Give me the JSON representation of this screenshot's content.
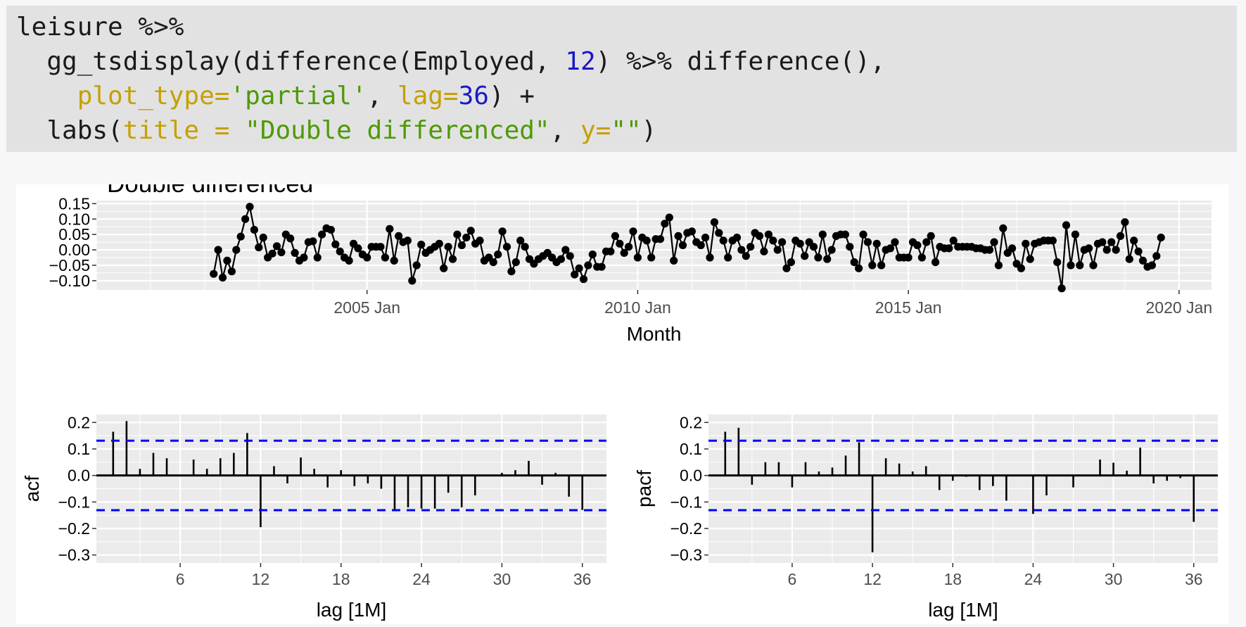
{
  "code": {
    "lines": [
      [
        {
          "t": "leisure %>%",
          "c": "plain"
        }
      ],
      [
        {
          "t": "  gg_tsdisplay(difference(Employed, ",
          "c": "plain"
        },
        {
          "t": "12",
          "c": "num"
        },
        {
          "t": ") %>% difference(),",
          "c": "plain"
        }
      ],
      [
        {
          "t": "    ",
          "c": "plain"
        },
        {
          "t": "plot_type=",
          "c": "arg"
        },
        {
          "t": "'partial'",
          "c": "str"
        },
        {
          "t": ", ",
          "c": "plain"
        },
        {
          "t": "lag=",
          "c": "arg"
        },
        {
          "t": "36",
          "c": "num"
        },
        {
          "t": ") +",
          "c": "plain"
        }
      ],
      [
        {
          "t": "  labs(",
          "c": "plain"
        },
        {
          "t": "title = ",
          "c": "arg"
        },
        {
          "t": "\"Double differenced\"",
          "c": "str"
        },
        {
          "t": ", ",
          "c": "plain"
        },
        {
          "t": "y=",
          "c": "arg"
        },
        {
          "t": "\"\"",
          "c": "str"
        },
        {
          "t": ")",
          "c": "plain"
        }
      ]
    ]
  },
  "colors": {
    "panel_bg": "#ebebeb",
    "grid": "#ffffff",
    "series": "#000000",
    "ci": "#0000ff",
    "code_bg": "#e2e2e2"
  },
  "chart_data": [
    {
      "type": "line",
      "title": "Double differenced",
      "xlabel": "Month",
      "ylabel": "",
      "x_start": "2002 Mar",
      "x_end": "2019 Sep",
      "x_ticks": [
        "2005 Jan",
        "2010 Jan",
        "2015 Jan",
        "2020 Jan"
      ],
      "x_tick_years": [
        2005,
        2010,
        2015,
        2020
      ],
      "xlim_years": [
        2000,
        2020.6
      ],
      "y_ticks": [
        -0.1,
        -0.05,
        0.0,
        0.05,
        0.1,
        0.15
      ],
      "ylim": [
        -0.13,
        0.16
      ],
      "markers": true,
      "values": [
        -0.078,
        0.0,
        -0.09,
        -0.035,
        -0.07,
        0.0,
        0.043,
        0.1,
        0.14,
        0.065,
        0.008,
        0.04,
        -0.025,
        -0.012,
        0.012,
        -0.008,
        0.05,
        0.037,
        -0.01,
        -0.035,
        -0.025,
        0.025,
        0.028,
        -0.025,
        0.05,
        0.07,
        0.065,
        0.018,
        -0.005,
        -0.025,
        -0.035,
        0.02,
        0.005,
        -0.015,
        -0.025,
        0.01,
        0.01,
        0.01,
        -0.025,
        0.068,
        -0.035,
        0.045,
        0.025,
        0.03,
        -0.1,
        -0.05,
        0.017,
        -0.01,
        0.0,
        0.01,
        0.02,
        -0.06,
        0.01,
        -0.03,
        0.05,
        0.015,
        0.04,
        0.062,
        0.02,
        0.03,
        -0.035,
        -0.025,
        -0.04,
        -0.015,
        0.06,
        0.01,
        -0.07,
        -0.04,
        0.03,
        0.01,
        -0.03,
        -0.045,
        -0.03,
        -0.02,
        -0.01,
        -0.025,
        -0.04,
        -0.03,
        0.0,
        -0.02,
        -0.08,
        -0.06,
        -0.095,
        -0.05,
        -0.015,
        -0.055,
        -0.055,
        -0.005,
        -0.005,
        0.045,
        0.02,
        -0.01,
        0.01,
        0.06,
        -0.025,
        0.04,
        0.03,
        -0.025,
        0.035,
        0.035,
        0.085,
        0.105,
        -0.035,
        0.045,
        0.015,
        0.055,
        0.06,
        0.025,
        0.015,
        0.04,
        -0.025,
        0.09,
        0.055,
        0.03,
        -0.025,
        0.03,
        0.04,
        0.0,
        -0.02,
        0.01,
        0.055,
        0.045,
        -0.005,
        0.05,
        0.03,
        0.0,
        0.025,
        -0.06,
        -0.04,
        0.03,
        0.02,
        -0.02,
        0.025,
        0.01,
        -0.025,
        0.05,
        -0.03,
        0.0,
        0.045,
        0.05,
        0.05,
        0.01,
        -0.04,
        -0.06,
        0.05,
        0.025,
        -0.05,
        0.02,
        -0.05,
        0.0,
        0.005,
        0.025,
        -0.025,
        -0.025,
        -0.025,
        0.025,
        0.015,
        -0.025,
        0.025,
        0.045,
        -0.04,
        0.01,
        0.005,
        0.005,
        0.03,
        0.01,
        0.01,
        0.01,
        0.01,
        0.005,
        0.005,
        0.0,
        0.0,
        0.025,
        -0.05,
        0.07,
        -0.01,
        0.005,
        -0.045,
        -0.06,
        0.02,
        -0.03,
        0.02,
        0.025,
        0.03,
        0.03,
        0.03,
        -0.04,
        -0.125,
        0.08,
        -0.05,
        0.05,
        -0.05,
        0.0,
        0.005,
        -0.05,
        0.02,
        0.025,
        0.0,
        0.025,
        0.0,
        0.045,
        0.09,
        -0.03,
        0.03,
        -0.005,
        -0.035,
        -0.055,
        -0.05,
        -0.02,
        0.04
      ]
    },
    {
      "type": "bar",
      "ylabel": "acf",
      "xlabel": "lag [1M]",
      "x_ticks": [
        6,
        12,
        18,
        24,
        30,
        36
      ],
      "y_ticks": [
        -0.3,
        -0.2,
        -0.1,
        0.0,
        0.1,
        0.2
      ],
      "ylim": [
        -0.33,
        0.23
      ],
      "xlim": [
        -0.25,
        37.8
      ],
      "ci": 0.131,
      "lags": [
        1,
        2,
        3,
        4,
        5,
        6,
        7,
        8,
        9,
        10,
        11,
        12,
        13,
        14,
        15,
        16,
        17,
        18,
        19,
        20,
        21,
        22,
        23,
        24,
        25,
        26,
        27,
        28,
        29,
        30,
        31,
        32,
        33,
        34,
        35,
        36
      ],
      "values": [
        0.165,
        0.205,
        0.025,
        0.085,
        0.065,
        0.0,
        0.06,
        0.025,
        0.065,
        0.085,
        0.16,
        -0.195,
        0.035,
        -0.03,
        0.068,
        0.025,
        -0.045,
        0.02,
        -0.04,
        -0.03,
        -0.05,
        -0.13,
        -0.12,
        -0.125,
        -0.125,
        -0.065,
        -0.12,
        -0.075,
        0.0,
        0.01,
        0.02,
        0.055,
        -0.035,
        0.01,
        -0.08,
        -0.13
      ]
    },
    {
      "type": "bar",
      "ylabel": "pacf",
      "xlabel": "lag [1M]",
      "x_ticks": [
        6,
        12,
        18,
        24,
        30,
        36
      ],
      "y_ticks": [
        -0.3,
        -0.2,
        -0.1,
        0.0,
        0.1,
        0.2
      ],
      "ylim": [
        -0.33,
        0.23
      ],
      "xlim": [
        -0.25,
        37.8
      ],
      "ci": 0.131,
      "lags": [
        1,
        2,
        3,
        4,
        5,
        6,
        7,
        8,
        9,
        10,
        11,
        12,
        13,
        14,
        15,
        16,
        17,
        18,
        19,
        20,
        21,
        22,
        23,
        24,
        25,
        26,
        27,
        28,
        29,
        30,
        31,
        32,
        33,
        34,
        35,
        36
      ],
      "values": [
        0.165,
        0.18,
        -0.035,
        0.05,
        0.05,
        -0.045,
        0.05,
        0.015,
        0.03,
        0.075,
        0.125,
        -0.29,
        0.065,
        0.045,
        0.015,
        0.035,
        -0.055,
        -0.02,
        -0.005,
        -0.055,
        -0.04,
        -0.095,
        0.0,
        -0.145,
        -0.075,
        0.0,
        -0.045,
        0.0,
        0.06,
        0.048,
        0.018,
        0.105,
        -0.03,
        -0.02,
        -0.01,
        -0.175
      ]
    }
  ]
}
